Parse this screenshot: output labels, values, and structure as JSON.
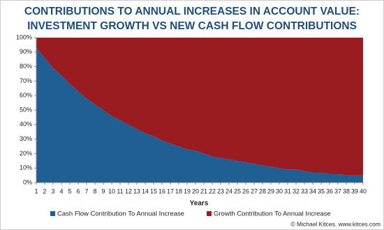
{
  "chart_data": {
    "type": "stacked_area",
    "title": [
      "CONTRIBUTIONS TO ANNUAL INCREASES IN ACCOUNT VALUE:",
      "INVESTMENT GROWTH VS NEW CASH FLOW CONTRIBUTIONS"
    ],
    "x_label": "Years",
    "source": "© Michael Kitces, www.kitces.com",
    "x": [
      1,
      2,
      3,
      4,
      5,
      6,
      7,
      8,
      9,
      10,
      11,
      12,
      13,
      14,
      15,
      16,
      17,
      18,
      19,
      20,
      21,
      22,
      23,
      24,
      25,
      26,
      27,
      28,
      29,
      30,
      31,
      32,
      33,
      34,
      35,
      36,
      37,
      38,
      39,
      40
    ],
    "xlim": [
      1,
      40
    ],
    "ylim": [
      0,
      100
    ],
    "yticks": [
      {
        "value": 0,
        "label": "0%"
      },
      {
        "value": 10,
        "label": "10%"
      },
      {
        "value": 20,
        "label": "20%"
      },
      {
        "value": 30,
        "label": "30%"
      },
      {
        "value": 40,
        "label": "40%"
      },
      {
        "value": 50,
        "label": "50%"
      },
      {
        "value": 60,
        "label": "60%"
      },
      {
        "value": 70,
        "label": "70%"
      },
      {
        "value": 80,
        "label": "80%"
      },
      {
        "value": 90,
        "label": "90%"
      },
      {
        "value": 100,
        "label": "100%"
      }
    ],
    "series": [
      {
        "name": "Cash Flow Contribution To Annual Increase",
        "color": "#1f5f94",
        "values": [
          93,
          86,
          79,
          74,
          68,
          63,
          58,
          54,
          50,
          46,
          43,
          40,
          37,
          34,
          32,
          29,
          27,
          25,
          23,
          22,
          20,
          18,
          17,
          16,
          15,
          14,
          13,
          12,
          11,
          10,
          9,
          9,
          8,
          7,
          7,
          6,
          6,
          5,
          5,
          5
        ]
      },
      {
        "name": "Growth Contribution To Annual Increase",
        "color": "#9b1c20",
        "values": [
          7,
          14,
          21,
          26,
          32,
          37,
          42,
          46,
          50,
          54,
          57,
          60,
          63,
          66,
          68,
          71,
          73,
          75,
          77,
          78,
          80,
          82,
          83,
          84,
          85,
          86,
          87,
          88,
          89,
          90,
          91,
          91,
          92,
          93,
          93,
          94,
          94,
          95,
          95,
          95
        ]
      }
    ]
  }
}
